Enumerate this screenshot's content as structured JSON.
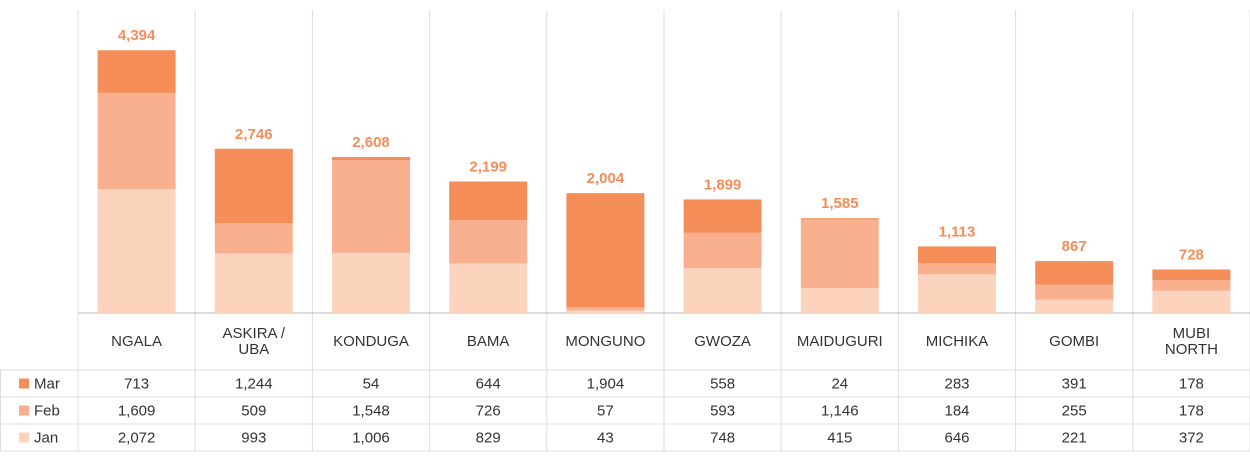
{
  "chart_data": {
    "type": "stacked_bar",
    "categories": [
      "NGALA",
      "ASKIRA / UBA",
      "KONDUGA",
      "BAMA",
      "MONGUNO",
      "GWOZA",
      "MAIDUGURI",
      "MICHIKA",
      "GOMBI",
      "MUBI NORTH"
    ],
    "series": [
      {
        "name": "Jan",
        "color": "#fcd3bd",
        "values": [
          2072,
          993,
          1006,
          829,
          43,
          748,
          415,
          646,
          221,
          372
        ],
        "value_labels": [
          "2,072",
          "993",
          "1,006",
          "829",
          "43",
          "748",
          "415",
          "646",
          "221",
          "372"
        ]
      },
      {
        "name": "Feb",
        "color": "#f9b08f",
        "values": [
          1609,
          509,
          1548,
          726,
          57,
          593,
          1146,
          184,
          255,
          178
        ],
        "value_labels": [
          "1,609",
          "509",
          "1,548",
          "726",
          "57",
          "593",
          "1,146",
          "184",
          "255",
          "178"
        ]
      },
      {
        "name": "Mar",
        "color": "#f58d58",
        "values": [
          713,
          1244,
          54,
          644,
          1904,
          558,
          24,
          283,
          391,
          178
        ],
        "value_labels": [
          "713",
          "1,244",
          "54",
          "644",
          "1,904",
          "558",
          "24",
          "283",
          "391",
          "178"
        ]
      }
    ],
    "totals": [
      4394,
      2746,
      2608,
      2199,
      2004,
      1899,
      1585,
      1113,
      867,
      728
    ],
    "total_labels": [
      "4,394",
      "2,746",
      "2,608",
      "2,199",
      "2,004",
      "1,899",
      "1,585",
      "1,113",
      "867",
      "728"
    ],
    "total_label_color": "#f58d58",
    "ylim": [
      0,
      5000
    ]
  }
}
